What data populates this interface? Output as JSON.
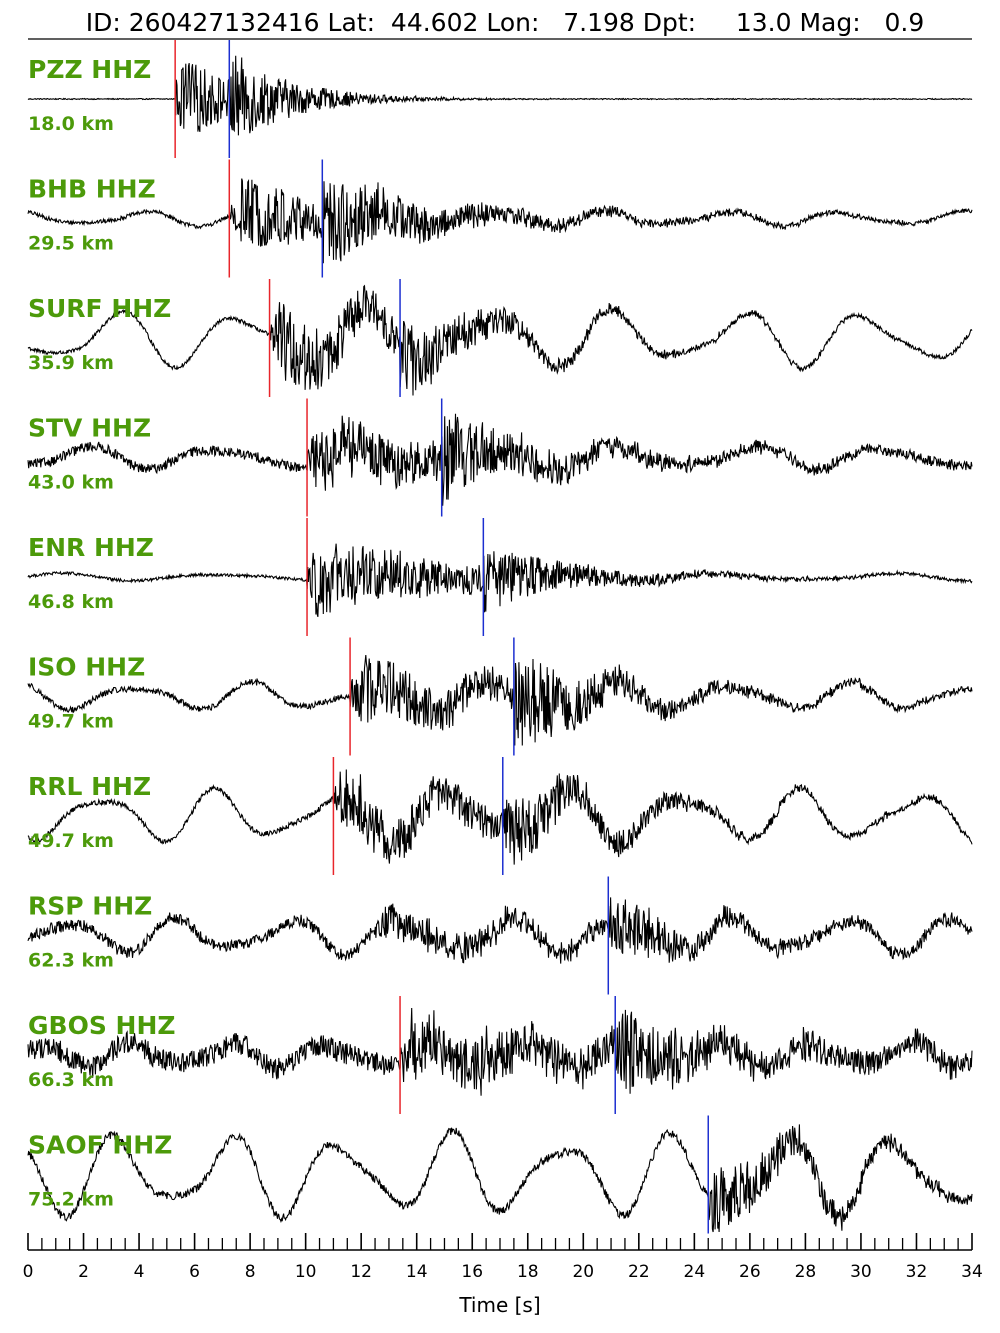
{
  "header": {
    "id_label": "ID:",
    "id": "260427132416",
    "lat_label": "Lat:",
    "lat": "44.602",
    "lon_label": "Lon:",
    "lon": "7.198",
    "dpt_label": "Dpt:",
    "dpt": "13.0",
    "mag_label": "Mag:",
    "mag": "0.9"
  },
  "colors": {
    "label": "#4c9a0a",
    "trace": "#000000",
    "p_pick": "#e8252b",
    "s_pick": "#1c2fd0"
  },
  "chart_data": {
    "type": "line",
    "title": "",
    "xlabel": "Time [s]",
    "ylabel": "",
    "xlim": [
      0,
      34
    ],
    "x_major_ticks": [
      0,
      2,
      4,
      6,
      8,
      10,
      12,
      14,
      16,
      18,
      20,
      22,
      24,
      26,
      28,
      30,
      32,
      34
    ],
    "x_minor_step": 0.5,
    "x_tick_labels": [
      "0",
      "2",
      "4",
      "6",
      "8",
      "10",
      "12",
      "14",
      "16",
      "18",
      "20",
      "22",
      "24",
      "26",
      "28",
      "30",
      "32",
      "34"
    ],
    "grid": false,
    "legend": "none",
    "series": [
      {
        "name": "PZZ HHZ",
        "distance": "18.0 km",
        "p_pick": 5.3,
        "s_pick": 7.25,
        "onset": 5.3,
        "noise": 0.01,
        "coda": 1.0,
        "coda_decay": 2.2,
        "low_amp": 0.0,
        "low_period": 0,
        "s_boost": 0.6
      },
      {
        "name": "BHB HHZ",
        "distance": "29.5 km",
        "p_pick": 7.25,
        "s_pick": 10.6,
        "onset": 7.25,
        "noise": 0.04,
        "coda": 0.8,
        "coda_decay": 6.5,
        "low_amp": 0.12,
        "low_period": 4.2,
        "s_boost": 0.5
      },
      {
        "name": "SURF HHZ",
        "distance": "35.9 km",
        "p_pick": 8.7,
        "s_pick": 13.4,
        "onset": 8.7,
        "noise": 0.04,
        "coda": 0.85,
        "coda_decay": 5.5,
        "low_amp": 0.45,
        "low_period": 4.5,
        "s_boost": 0.45
      },
      {
        "name": "STV HHZ",
        "distance": "43.0 km",
        "p_pick": 10.05,
        "s_pick": 14.9,
        "onset": 10.05,
        "noise": 0.1,
        "coda": 0.8,
        "coda_decay": 6.5,
        "low_amp": 0.18,
        "low_period": 4.8,
        "s_boost": 0.55
      },
      {
        "name": "ENR HHZ",
        "distance": "46.8 km",
        "p_pick": 10.05,
        "s_pick": 16.4,
        "onset": 10.05,
        "noise": 0.03,
        "coda": 0.85,
        "coda_decay": 5.5,
        "low_amp": 0.06,
        "low_period": 6.0,
        "s_boost": 0.45
      },
      {
        "name": "ISO HHZ",
        "distance": "49.7 km",
        "p_pick": 11.6,
        "s_pick": 17.5,
        "onset": 11.6,
        "noise": 0.06,
        "coda": 0.7,
        "coda_decay": 7.0,
        "low_amp": 0.22,
        "low_period": 4.3,
        "s_boost": 0.8
      },
      {
        "name": "RRL HHZ",
        "distance": "49.7 km",
        "p_pick": 11.0,
        "s_pick": 17.1,
        "onset": 11.0,
        "noise": 0.05,
        "coda": 0.7,
        "coda_decay": 7.0,
        "low_amp": 0.42,
        "low_period": 4.2,
        "s_boost": 0.6
      },
      {
        "name": "RSP HHZ",
        "distance": "62.3 km",
        "p_pick": null,
        "s_pick": 20.9,
        "onset": 12.5,
        "noise": 0.12,
        "coda": 0.35,
        "coda_decay": 9.0,
        "low_amp": 0.28,
        "low_period": 4.0,
        "s_boost": 0.6
      },
      {
        "name": "GBOS HHZ",
        "distance": "66.3 km",
        "p_pick": 13.4,
        "s_pick": 21.15,
        "onset": 13.4,
        "noise": 0.22,
        "coda": 0.7,
        "coda_decay": 8.0,
        "low_amp": 0.2,
        "low_period": 3.5,
        "s_boost": 0.7
      },
      {
        "name": "SAOF HHZ",
        "distance": "75.2 km",
        "p_pick": null,
        "s_pick": 24.5,
        "onset": 24.5,
        "noise": 0.08,
        "coda": 0.35,
        "coda_decay": 6.0,
        "low_amp": 0.65,
        "low_period": 4.0,
        "s_boost": 0.5
      }
    ]
  }
}
